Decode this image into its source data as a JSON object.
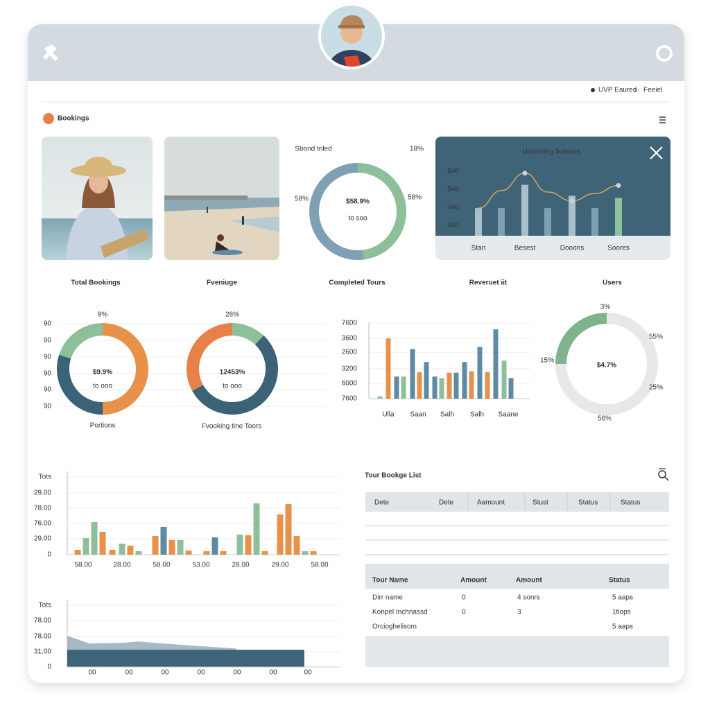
{
  "header": {
    "breadcrumb": [
      "UVP Eaured",
      "Feeiel"
    ]
  },
  "section_title": "Bookings",
  "kpi_labels": [
    "Total Bookings",
    "Fveniuge",
    "Completed Tours",
    "Reveruet iit",
    "Users"
  ],
  "chart_data": [
    {
      "type": "donut",
      "title": "Sbond tnled",
      "center": "$58.9%",
      "subtitle": "to soo",
      "annotations": [
        "18%",
        "58%",
        "58%"
      ],
      "values": [
        48,
        52
      ],
      "colors": [
        "#8dbf9b",
        "#7f9fb5"
      ]
    },
    {
      "type": "combo",
      "title": "Uncoming bokours",
      "ylabels": [
        "$40",
        "$40",
        "040",
        "040"
      ],
      "categories": [
        "Stan",
        null,
        "Besest",
        null,
        "Dooons",
        null,
        "Soores"
      ],
      "ylim": [
        0,
        100
      ],
      "bars": {
        "values": [
          38,
          38,
          70,
          38,
          55,
          38,
          52
        ],
        "colors": [
          "#a9bfcc",
          "#7e9fb2",
          "#a9bfcc",
          "#7e9fb2",
          "#a9bfcc",
          "#7e9fb2",
          "#8dc2a0"
        ]
      },
      "line": {
        "values": [
          38,
          62,
          86,
          60,
          48,
          58,
          69
        ],
        "color": "#d9a45e"
      }
    },
    {
      "type": "donut",
      "center": "$9.9%",
      "subtitle": "to ooo",
      "annotations": [
        "9%"
      ],
      "caption": "Portions",
      "ylabels": [
        "90",
        "90",
        "90",
        "90",
        "90",
        "90"
      ],
      "values": [
        50,
        30,
        20
      ],
      "colors": [
        "#e8914a",
        "#3b6276",
        "#8dbf9b"
      ]
    },
    {
      "type": "donut",
      "center": "12453%",
      "subtitle": "to ooo",
      "annotations": [
        "28%"
      ],
      "caption": "Fvooking tine Toors",
      "values": [
        12,
        55,
        33
      ],
      "colors": [
        "#8dbf9b",
        "#3b6276",
        "#e8804a"
      ]
    },
    {
      "type": "bar",
      "ylabels": [
        "7600",
        "3600",
        "2600",
        "3200",
        "6000",
        "7600"
      ],
      "xlabels": [
        "Ulla",
        "Saan",
        "Salh",
        "Salh",
        "Saane"
      ],
      "ylim": [
        0,
        100
      ],
      "values": [
        3,
        79,
        29,
        29,
        65,
        35,
        48,
        29,
        27,
        34,
        34,
        48,
        36,
        68,
        35,
        91,
        50,
        27
      ],
      "colors": [
        "#8dbf9b",
        "#e8914a",
        "#5f8aa3",
        "#8dbf9b",
        "#5f8aa3",
        "#e8914a",
        "#5f8aa3",
        "#5f8aa3",
        "#8dbf9b",
        "#e8914a",
        "#5f8aa3",
        "#5f8aa3",
        "#e8914a",
        "#5f8aa3",
        "#e8914a",
        "#5f8aa3",
        "#8dbf9b",
        "#5f8aa3"
      ]
    },
    {
      "type": "donut",
      "center": "$4.7%",
      "annotations": [
        "3%",
        "55%",
        "15%",
        "25%",
        "56%"
      ],
      "values": [
        75,
        25
      ],
      "colors": [
        "#e6e8ea",
        "#7fb38c"
      ]
    },
    {
      "type": "bar",
      "ylabels": [
        "Tots",
        "29.00",
        "78.00",
        "76.00",
        "29.00",
        "0"
      ],
      "xlabels": [
        "58.00",
        "28.00",
        "58.00",
        "53.00",
        "28.00",
        "29.00",
        "58.00"
      ],
      "ylim": [
        0,
        100
      ],
      "values": [
        7,
        24,
        47,
        33,
        7,
        16,
        13,
        5,
        27,
        40,
        21,
        21,
        6,
        5,
        25,
        5,
        29,
        28,
        74,
        5,
        58,
        73,
        27,
        5,
        5
      ],
      "colors": [
        "#e8914a",
        "#8dbf9b",
        "#8dbf9b",
        "#e8914a",
        "#e8914a",
        "#8dbf9b",
        "#e8914a",
        "#8dbf9b",
        "#e8914a",
        "#5f8aa3",
        "#e8914a",
        "#8dbf9b",
        "#e8914a",
        "#e8914a",
        "#5f8aa3",
        "#e8914a",
        "#8dbf9b",
        "#e8914a",
        "#8dbf9b",
        "#e8914a",
        "#e8914a",
        "#e8914a",
        "#e8914a",
        "#8dbf9b",
        "#e8914a"
      ]
    },
    {
      "type": "area",
      "ylabels": [
        "Tots",
        "78.00",
        "78.00",
        "31.00",
        "0"
      ],
      "xlabels": [
        "00",
        "00",
        "00",
        "00",
        "00",
        "00",
        "00"
      ],
      "xlim": [
        0,
        100
      ],
      "ylim": [
        0,
        100
      ],
      "series": [
        {
          "color": "#a7b9c6",
          "x": [
            0,
            8,
            21,
            26,
            41,
            62
          ],
          "values": [
            49,
            37,
            38,
            40,
            35,
            29
          ]
        },
        {
          "color": "#3e6478",
          "x": [
            0,
            87
          ],
          "values": [
            27,
            27
          ]
        }
      ]
    }
  ],
  "table": {
    "title": "Tour Bookge List",
    "top_header": [
      "Dete",
      "Dete",
      "Aamount",
      "Stust",
      "Status",
      "Status"
    ],
    "header": [
      "Tour Name",
      "Amount",
      "Amount",
      "Status"
    ],
    "rows": [
      [
        "Dirr name",
        0,
        "4 sonrs",
        "5 aaps"
      ],
      [
        "Konpel Inchnassd",
        0,
        3,
        "1tiops"
      ],
      [
        "Orcioghelisom",
        null,
        null,
        "5 aaps"
      ]
    ]
  }
}
